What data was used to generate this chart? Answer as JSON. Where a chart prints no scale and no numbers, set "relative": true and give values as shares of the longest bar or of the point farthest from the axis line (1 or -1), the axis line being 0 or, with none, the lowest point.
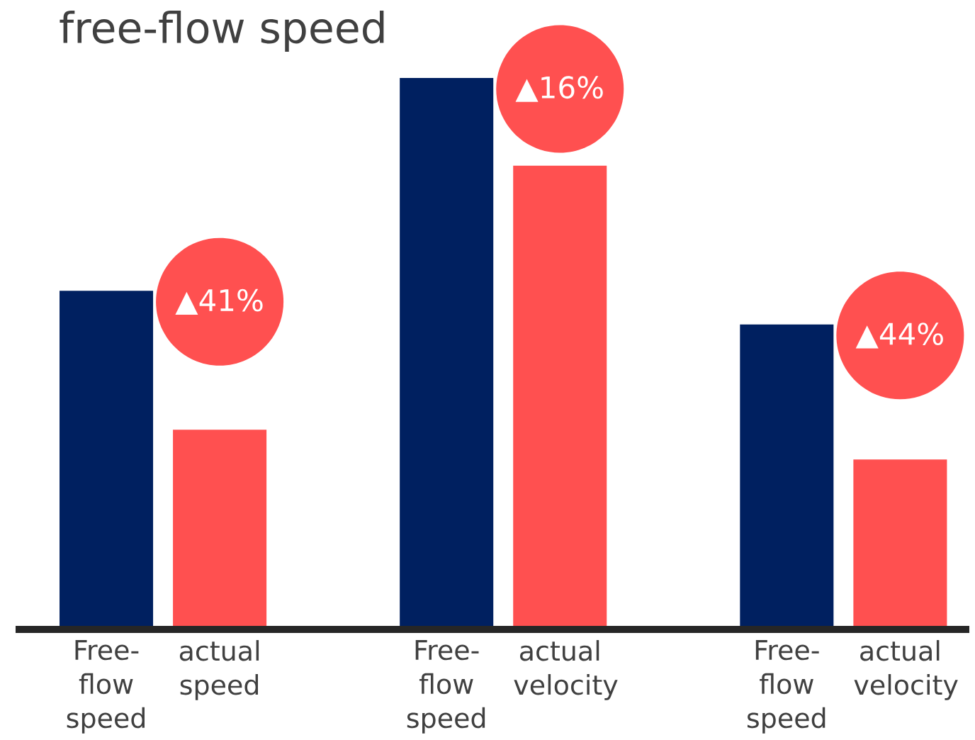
{
  "chart_data": {
    "type": "bar",
    "title": "free-flow speed",
    "relative": true,
    "categories": [
      "Free-flow speed",
      "actual speed",
      "Free-flow speed",
      "actual velocity",
      "Free-flow speed",
      "actual velocity"
    ],
    "values": [
      0.614,
      0.362,
      1,
      0.841,
      0.553,
      0.308
    ],
    "colors": [
      "#002060",
      "#ff5050",
      "#002060",
      "#ff5050",
      "#002060",
      "#ff5050"
    ],
    "annotations": [
      "▲41%",
      "▲16%",
      "▲44%"
    ]
  }
}
